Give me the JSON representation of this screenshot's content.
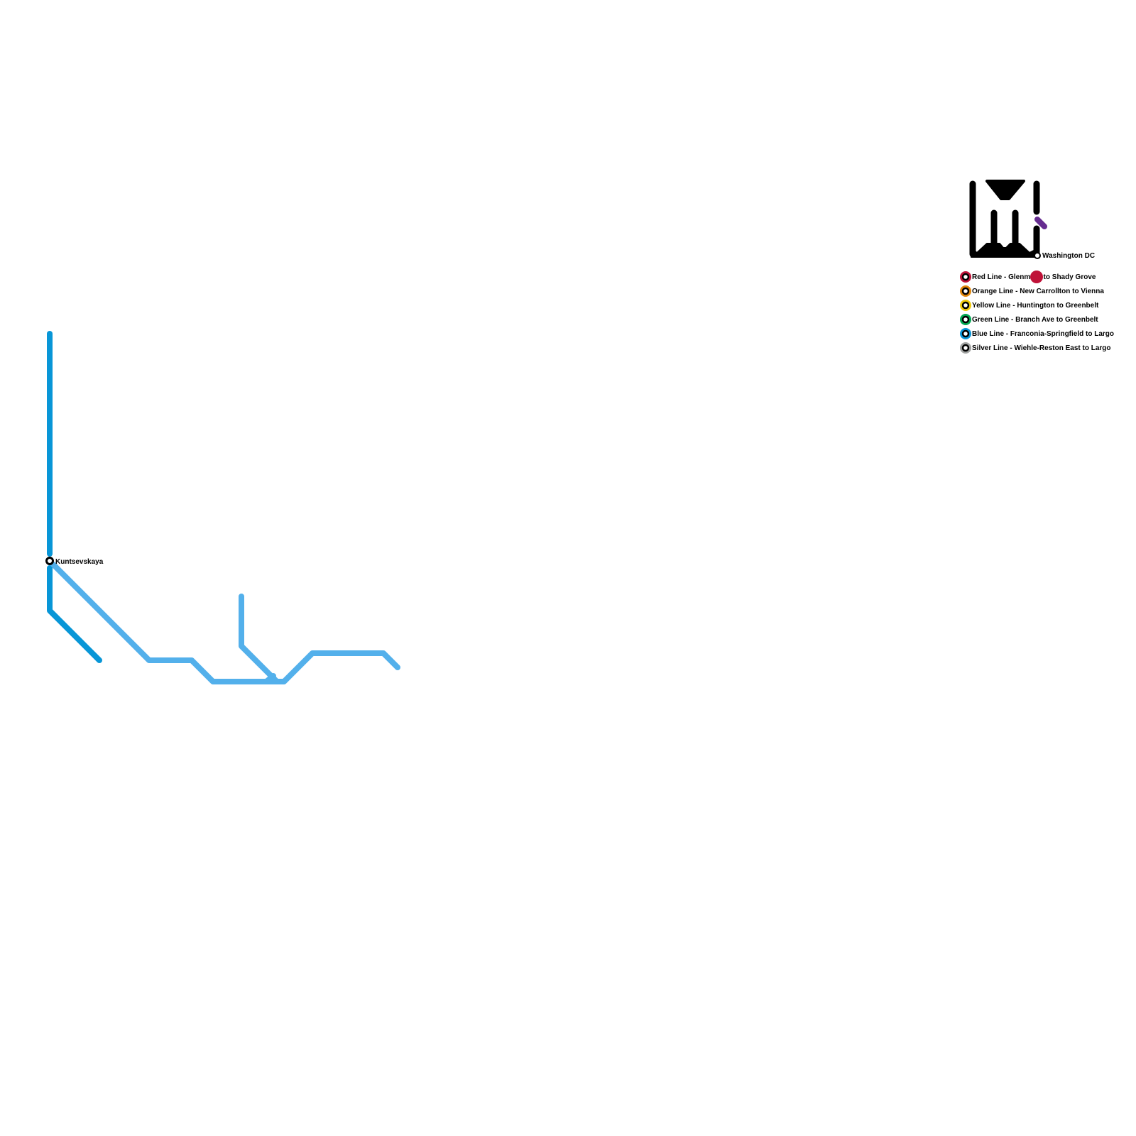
{
  "colors": {
    "blue_dark": "#0896D7",
    "blue_light": "#53B0EB",
    "logo": "#000000",
    "purple": "#662C90",
    "red": "#BF1238",
    "orange": "#E0860B",
    "yellow": "#F0CA0B",
    "green": "#00A651",
    "blue": "#0895D8",
    "silver": "#A1A3A2"
  },
  "stations": {
    "kuntsevskaya": "Kuntsevskaya",
    "washington": "Washington DC"
  },
  "legend": [
    {
      "label": "Red Line - Glenmont to Shady Grove",
      "color": "#BF1238"
    },
    {
      "label": "Orange Line - New Carrollton to Vienna",
      "color": "#E0860B"
    },
    {
      "label": "Yellow Line - Huntington to Greenbelt",
      "color": "#F0CA0B"
    },
    {
      "label": "Green Line - Branch Ave to Greenbelt",
      "color": "#00A651"
    },
    {
      "label": "Blue Line - Franconia-Springfield to Largo",
      "color": "#0895D8"
    },
    {
      "label": "Silver Line - Wiehle-Reston East to Largo",
      "color": "#A1A3A2"
    }
  ]
}
